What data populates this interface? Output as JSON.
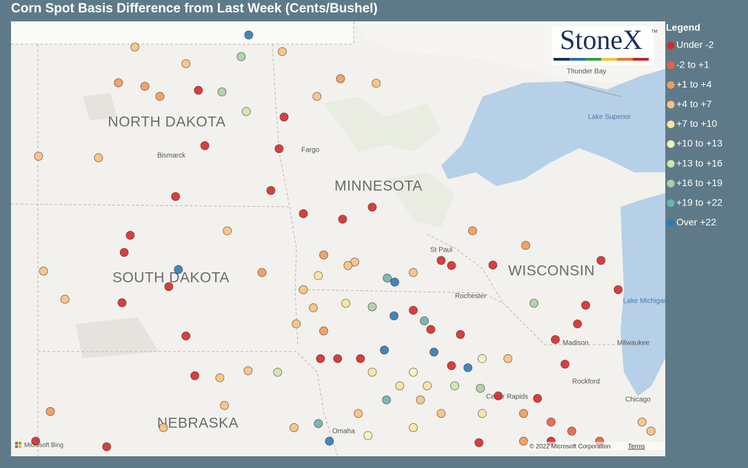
{
  "title": "Corn Spot Basis Difference from Last Week (Cents/Bushel)",
  "legend": {
    "title": "Legend",
    "entries": [
      {
        "label": "Under -2",
        "color": "#d42a2a"
      },
      {
        "label": "-2 to +1",
        "color": "#e9603f"
      },
      {
        "label": "+1 to +4",
        "color": "#f29a58"
      },
      {
        "label": "+4 to +7",
        "color": "#f7c17e"
      },
      {
        "label": "+7 to +10",
        "color": "#fbe3a0"
      },
      {
        "label": "+10 to +13",
        "color": "#f3f4b8"
      },
      {
        "label": "+13 to +16",
        "color": "#cde8a6"
      },
      {
        "label": "+16 to +19",
        "color": "#a5d3a2"
      },
      {
        "label": "+19 to +22",
        "color": "#6fb0ad"
      },
      {
        "label": "Over +22",
        "color": "#2b7bba"
      }
    ]
  },
  "places": [
    "NORTH DAKOTA",
    "SOUTH DAKOTA",
    "MINNESOTA",
    "WISCONSIN",
    "NEBRASKA",
    "Bismarck",
    "Fargo",
    "St Paul",
    "Rochester",
    "Madison",
    "Milwaukee",
    "Rockford",
    "Chicago",
    "Cedar Rapids",
    "Omaha",
    "Thunder Bay",
    "Lake Superior",
    "Lake Michigan"
  ],
  "logo": {
    "name": "StoneX",
    "mark": "TM"
  },
  "footer": {
    "bing": "Microsoft Bing",
    "copyright": "© 2022 Microsoft Corporation",
    "terms": "Terms"
  },
  "lonlim": [
    -104.76,
    -86.43
  ],
  "latlim": [
    40.92,
    49.56
  ],
  "points": [
    [
      -98.1,
      49.29,
      9
    ],
    [
      -101.29,
      49.05,
      3
    ],
    [
      -99.51,
      48.19,
      0
    ],
    [
      -97.11,
      47.66,
      0
    ],
    [
      -99.33,
      47.09,
      0
    ],
    [
      -97.25,
      47.03,
      0
    ],
    [
      -97.48,
      46.2,
      0
    ],
    [
      -96.57,
      45.74,
      0
    ],
    [
      -95.47,
      45.63,
      0
    ],
    [
      -94.64,
      45.87,
      0
    ],
    [
      -98.31,
      48.86,
      7
    ],
    [
      -98.17,
      47.77,
      6
    ],
    [
      -98.85,
      48.16,
      7
    ],
    [
      -101.01,
      48.27,
      2
    ],
    [
      -101.75,
      48.34,
      2
    ],
    [
      -103.99,
      46.88,
      3
    ],
    [
      -102.31,
      46.85,
      3
    ],
    [
      -100.15,
      46.08,
      0
    ],
    [
      -101.42,
      45.31,
      0
    ],
    [
      -101.59,
      44.97,
      0
    ],
    [
      -100.07,
      44.63,
      9
    ],
    [
      -100.34,
      44.29,
      0
    ],
    [
      -101.65,
      43.97,
      0
    ],
    [
      -103.25,
      44.04,
      3
    ],
    [
      -103.85,
      44.6,
      3
    ],
    [
      -99.86,
      43.31,
      0
    ],
    [
      -99.61,
      42.52,
      0
    ],
    [
      -102.08,
      41.11,
      0
    ],
    [
      -104.07,
      41.22,
      0
    ],
    [
      -103.66,
      41.81,
      2
    ],
    [
      -98.91,
      42.48,
      3
    ],
    [
      -97.29,
      42.59,
      6
    ],
    [
      -96.29,
      43.87,
      3
    ],
    [
      -96.0,
      43.41,
      2
    ],
    [
      -96.09,
      42.86,
      0
    ],
    [
      -95.61,
      42.86,
      0
    ],
    [
      -94.97,
      42.86,
      0
    ],
    [
      -95.38,
      43.96,
      4
    ],
    [
      -94.64,
      43.89,
      7
    ],
    [
      -94.22,
      44.46,
      8
    ],
    [
      -94.01,
      44.38,
      9
    ],
    [
      -94.03,
      43.71,
      9
    ],
    [
      -94.3,
      43.03,
      9
    ],
    [
      -93.18,
      43.61,
      8
    ],
    [
      -92.91,
      42.99,
      9
    ],
    [
      -91.96,
      42.68,
      9
    ],
    [
      -92.42,
      42.72,
      0
    ],
    [
      -92.17,
      43.34,
      0
    ],
    [
      -93.0,
      43.44,
      0
    ],
    [
      -93.49,
      43.82,
      0
    ],
    [
      -92.71,
      44.81,
      0
    ],
    [
      -92.42,
      44.71,
      0
    ],
    [
      -91.26,
      44.72,
      0
    ],
    [
      -90.11,
      43.96,
      7
    ],
    [
      -88.89,
      43.55,
      0
    ],
    [
      -88.66,
      43.92,
      0
    ],
    [
      -88.23,
      44.81,
      0
    ],
    [
      -87.75,
      44.23,
      0
    ],
    [
      -89.51,
      43.24,
      0
    ],
    [
      -89.24,
      42.75,
      0
    ],
    [
      -90.01,
      42.07,
      0
    ],
    [
      -91.11,
      42.12,
      0
    ],
    [
      -91.61,
      42.27,
      7
    ],
    [
      -94.24,
      42.04,
      8
    ],
    [
      -96.15,
      41.57,
      8
    ],
    [
      -95.84,
      41.22,
      9
    ],
    [
      -94.76,
      41.33,
      5
    ],
    [
      -93.49,
      41.49,
      4
    ],
    [
      -92.71,
      41.77,
      3
    ],
    [
      -91.56,
      41.77,
      4
    ],
    [
      -90.4,
      41.77,
      2
    ],
    [
      -89.63,
      41.6,
      1
    ],
    [
      -89.05,
      41.42,
      1
    ],
    [
      -88.27,
      41.22,
      1
    ],
    [
      -89.63,
      41.22,
      0
    ],
    [
      -91.65,
      41.19,
      0
    ],
    [
      -87.08,
      41.6,
      3
    ],
    [
      -86.83,
      41.42,
      3
    ],
    [
      -93.29,
      42.04,
      3
    ],
    [
      -93.87,
      42.32,
      4
    ],
    [
      -93.1,
      42.32,
      4
    ],
    [
      -95.03,
      41.77,
      3
    ],
    [
      -94.64,
      42.59,
      4
    ],
    [
      -93.49,
      42.59,
      5
    ],
    [
      -92.33,
      42.32,
      6
    ],
    [
      -91.56,
      42.86,
      5
    ],
    [
      -95.13,
      44.78,
      3
    ],
    [
      -96.0,
      44.92,
      2
    ],
    [
      -96.57,
      44.23,
      3
    ],
    [
      -97.73,
      44.57,
      2
    ],
    [
      -98.7,
      45.4,
      3
    ],
    [
      -100.59,
      48.07,
      2
    ],
    [
      -99.86,
      48.72,
      3
    ],
    [
      -97.16,
      48.96,
      3
    ],
    [
      -96.19,
      48.07,
      3
    ],
    [
      -95.53,
      48.42,
      2
    ],
    [
      -94.53,
      48.33,
      3
    ],
    [
      -93.49,
      44.57,
      3
    ],
    [
      -91.83,
      45.4,
      2
    ],
    [
      -90.34,
      45.11,
      2
    ],
    [
      -90.84,
      42.86,
      3
    ],
    [
      -90.4,
      41.22,
      2
    ],
    [
      -100.49,
      41.49,
      3
    ],
    [
      -98.78,
      41.93,
      3
    ],
    [
      -96.83,
      41.49,
      3
    ],
    [
      -98.12,
      42.62,
      3
    ],
    [
      -96.77,
      43.55,
      3
    ],
    [
      -96.15,
      44.51,
      4
    ],
    [
      -95.32,
      44.71,
      3
    ]
  ]
}
